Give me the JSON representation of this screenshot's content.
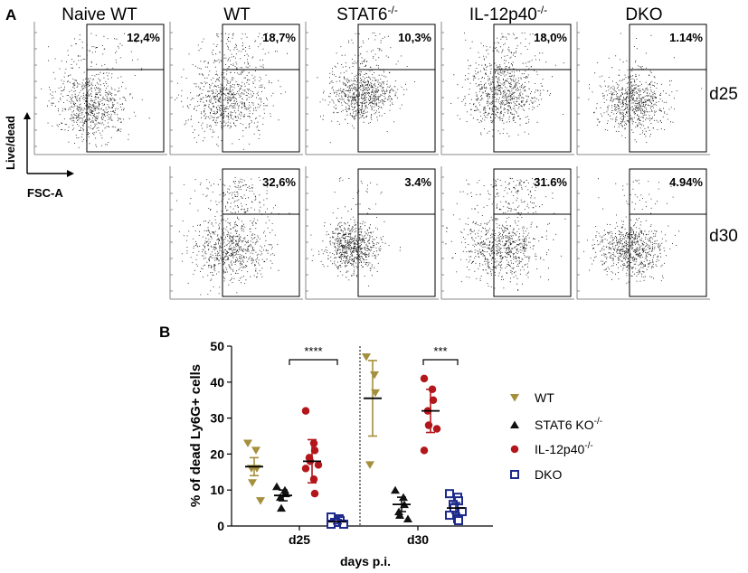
{
  "panel_a": {
    "label": "A",
    "columns": [
      "Naive WT",
      "WT",
      "STAT6-/-",
      "IL-12p40-/-",
      "DKO"
    ],
    "rows": [
      {
        "label": "d25",
        "percents": [
          "12,4%",
          "18,7%",
          "10,3%",
          "18,0%",
          "1.14%"
        ]
      },
      {
        "label": "d30",
        "percents": [
          "",
          "32,6%",
          "3.4%",
          "31.6%",
          "4.94%"
        ]
      }
    ],
    "axis_y_label": "Live/dead",
    "axis_x_label": "FSC-A"
  },
  "panel_b": {
    "label": "B",
    "significance": [
      "****",
      "***"
    ]
  },
  "chart_data": {
    "type": "scatter",
    "title": "",
    "ylabel": "% of dead Ly6G+ cells",
    "xlabel": "days p.i.",
    "categories": [
      "d25",
      "d30"
    ],
    "ylim": [
      0,
      50
    ],
    "yticks": [
      0,
      10,
      20,
      30,
      40,
      50
    ],
    "series": [
      {
        "name": "WT",
        "legend": "WT",
        "color": "#a48f3c",
        "marker": "triangle-down",
        "d25": [
          23,
          21,
          16,
          16,
          12,
          7
        ],
        "d25_mean": 16.5,
        "d25_sem": 2.5,
        "d30": [
          47,
          42,
          37,
          17
        ],
        "d30_mean": 35.5,
        "d30_sem": 10.5
      },
      {
        "name": "STAT6 KO",
        "legend": "STAT6 KO-/-",
        "color": "#111111",
        "marker": "triangle-up",
        "d25": [
          11,
          10,
          9,
          8,
          5
        ],
        "d25_mean": 8.5,
        "d25_sem": 1.5,
        "d30": [
          10,
          8,
          6,
          4,
          3,
          2
        ],
        "d30_mean": 6,
        "d30_sem": 2
      },
      {
        "name": "IL-12p40",
        "legend": "IL-12p40-/-",
        "color": "#b3171c",
        "marker": "circle",
        "d25": [
          32,
          23,
          21,
          19,
          18,
          17,
          16,
          13,
          9
        ],
        "d25_mean": 18,
        "d25_sem": 6,
        "d30": [
          41,
          38,
          35,
          32,
          28,
          27,
          21
        ],
        "d30_mean": 32,
        "d30_sem": 6
      },
      {
        "name": "DKO",
        "legend": "DKO",
        "color": "#1d2a8c",
        "marker": "square-open",
        "d25": [
          2.5,
          2,
          1.5,
          1,
          1,
          0.5,
          0.5
        ],
        "d25_mean": 1.2,
        "d25_sem": 0.6,
        "d30": [
          9,
          8,
          7,
          6,
          5,
          4,
          3,
          2,
          1.5
        ],
        "d30_mean": 5,
        "d30_sem": 1.5
      }
    ]
  }
}
